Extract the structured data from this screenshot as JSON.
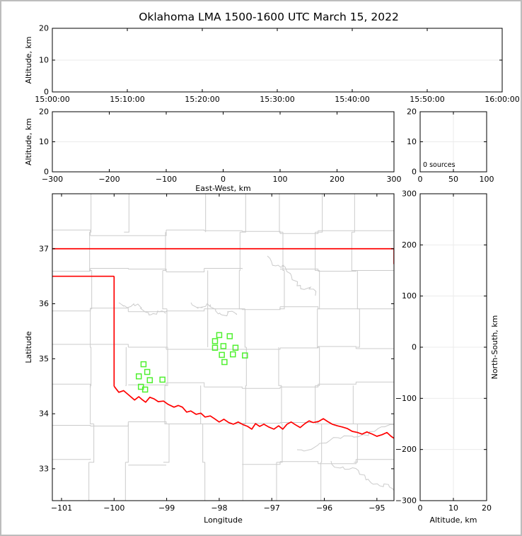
{
  "title": "Oklahoma LMA 1500-1600 UTC March 15, 2022",
  "colors": {
    "background": "#ffffff",
    "frame": "#bdbdbd",
    "axis": "#000000",
    "grid": "#ebebeb",
    "county_lines": "#cbcbcb",
    "state_border": "#ff0000",
    "station_marker": "#50f030"
  },
  "chart_data": [
    {
      "id": "altitude_vs_time",
      "type": "scatter",
      "title": "",
      "xlabel": "",
      "ylabel": "Altitude, km",
      "xlim": [
        0,
        3600
      ],
      "ylim": [
        0,
        20
      ],
      "xtick_values": [
        0,
        600,
        1200,
        1800,
        2400,
        3000,
        3600
      ],
      "xtick_labels": [
        "15:00:00",
        "15:10:00",
        "15:20:00",
        "15:30:00",
        "15:40:00",
        "15:50:00",
        "16:00:00"
      ],
      "ytick_values": [
        0,
        10,
        20
      ],
      "ytick_labels": [
        "0",
        "10",
        "20"
      ],
      "grid_x": [],
      "grid_y": [
        10
      ],
      "points": []
    },
    {
      "id": "altitude_vs_east_west",
      "type": "scatter",
      "title": "",
      "xlabel": "East-West, km",
      "ylabel": "Altitude, km",
      "xlim": [
        -300,
        300
      ],
      "ylim": [
        0,
        20
      ],
      "xtick_values": [
        -300,
        -200,
        -100,
        0,
        100,
        200,
        300
      ],
      "xtick_labels": [
        "−300",
        "−200",
        "−100",
        "0",
        "100",
        "200",
        "300"
      ],
      "ytick_values": [
        0,
        10,
        20
      ],
      "ytick_labels": [
        "0",
        "10",
        "20"
      ],
      "grid_x": [],
      "grid_y": [
        10
      ],
      "points": []
    },
    {
      "id": "altitude_source_histogram",
      "type": "line",
      "title": "",
      "xlabel": "",
      "ylabel": "",
      "xlim": [
        0,
        100
      ],
      "ylim": [
        0,
        20
      ],
      "xtick_values": [
        0,
        50,
        100
      ],
      "xtick_labels": [
        "0",
        "50",
        "100"
      ],
      "ytick_values": [
        0,
        10,
        20
      ],
      "ytick_labels": [
        "0",
        "10",
        "20"
      ],
      "grid_x": [
        50
      ],
      "grid_y": [
        10
      ],
      "annotation": "0 sources",
      "points": []
    },
    {
      "id": "plan_view_map",
      "type": "scatter",
      "title": "",
      "xlabel": "Longitude",
      "ylabel": "Latitude",
      "xlim": [
        -101.175,
        -94.675
      ],
      "ylim": [
        32.42,
        38.0
      ],
      "xtick_values": [
        -101,
        -100,
        -99,
        -98,
        -97,
        -96,
        -95
      ],
      "xtick_labels": [
        "−101",
        "−100",
        "−99",
        "−98",
        "−97",
        "−96",
        "−95"
      ],
      "ytick_values": [
        33,
        34,
        35,
        36,
        37
      ],
      "ytick_labels": [
        "33",
        "34",
        "35",
        "36",
        "37"
      ],
      "grid_x": [],
      "grid_y": [],
      "lma_stations_lon_lat": [
        [
          -98.0,
          35.43
        ],
        [
          -97.8,
          35.41
        ],
        [
          -98.08,
          35.32
        ],
        [
          -97.92,
          35.23
        ],
        [
          -98.08,
          35.2
        ],
        [
          -97.69,
          35.2
        ],
        [
          -97.95,
          35.07
        ],
        [
          -97.74,
          35.08
        ],
        [
          -97.51,
          35.06
        ],
        [
          -97.9,
          34.94
        ],
        [
          -99.44,
          34.9
        ],
        [
          -99.37,
          34.76
        ],
        [
          -99.53,
          34.68
        ],
        [
          -99.32,
          34.61
        ],
        [
          -99.08,
          34.62
        ],
        [
          -99.49,
          34.49
        ],
        [
          -99.41,
          34.44
        ]
      ],
      "state_border": {
        "north_border_lat": 37,
        "panhandle_south_lat": 36.5,
        "panhandle_east_lon": -100,
        "meridian_100w_lat_range": [
          36.5,
          34.5
        ],
        "east_edge_clip_lat_range": [
          37,
          36.72
        ],
        "red_river_lon_lat": [
          [
            -100.0,
            34.5
          ],
          [
            -99.91,
            34.39
          ],
          [
            -99.82,
            34.42
          ],
          [
            -99.71,
            34.33
          ],
          [
            -99.61,
            34.25
          ],
          [
            -99.53,
            34.31
          ],
          [
            -99.47,
            34.26
          ],
          [
            -99.4,
            34.21
          ],
          [
            -99.32,
            34.3
          ],
          [
            -99.24,
            34.27
          ],
          [
            -99.16,
            34.22
          ],
          [
            -99.06,
            34.23
          ],
          [
            -98.97,
            34.17
          ],
          [
            -98.86,
            34.12
          ],
          [
            -98.78,
            34.15
          ],
          [
            -98.7,
            34.12
          ],
          [
            -98.62,
            34.03
          ],
          [
            -98.54,
            34.05
          ],
          [
            -98.44,
            33.99
          ],
          [
            -98.35,
            34.01
          ],
          [
            -98.27,
            33.94
          ],
          [
            -98.17,
            33.96
          ],
          [
            -98.09,
            33.91
          ],
          [
            -98.0,
            33.85
          ],
          [
            -97.91,
            33.9
          ],
          [
            -97.82,
            33.84
          ],
          [
            -97.73,
            33.81
          ],
          [
            -97.64,
            33.85
          ],
          [
            -97.54,
            33.8
          ],
          [
            -97.46,
            33.77
          ],
          [
            -97.38,
            33.72
          ],
          [
            -97.31,
            33.82
          ],
          [
            -97.23,
            33.77
          ],
          [
            -97.15,
            33.81
          ],
          [
            -97.06,
            33.76
          ],
          [
            -96.96,
            33.72
          ],
          [
            -96.87,
            33.78
          ],
          [
            -96.79,
            33.72
          ],
          [
            -96.71,
            33.81
          ],
          [
            -96.63,
            33.85
          ],
          [
            -96.55,
            33.8
          ],
          [
            -96.46,
            33.75
          ],
          [
            -96.37,
            33.82
          ],
          [
            -96.29,
            33.87
          ],
          [
            -96.21,
            33.84
          ],
          [
            -96.11,
            33.86
          ],
          [
            -96.02,
            33.91
          ],
          [
            -95.94,
            33.86
          ],
          [
            -95.85,
            33.81
          ],
          [
            -95.75,
            33.78
          ],
          [
            -95.66,
            33.76
          ],
          [
            -95.56,
            33.73
          ],
          [
            -95.47,
            33.68
          ],
          [
            -95.37,
            33.66
          ],
          [
            -95.28,
            33.63
          ],
          [
            -95.19,
            33.67
          ],
          [
            -95.09,
            33.63
          ],
          [
            -95.0,
            33.59
          ],
          [
            -94.9,
            33.62
          ],
          [
            -94.81,
            33.66
          ],
          [
            -94.73,
            33.59
          ],
          [
            -94.67,
            33.55
          ]
        ]
      }
    },
    {
      "id": "north_south_vs_altitude",
      "type": "scatter",
      "title": "",
      "xlabel": "Altitude, km",
      "ylabel_right": "North-South, km",
      "xlim": [
        0,
        20
      ],
      "ylim": [
        -300,
        300
      ],
      "xtick_values": [
        0,
        10,
        20
      ],
      "xtick_labels": [
        "0",
        "10",
        "20"
      ],
      "ytick_values": [
        -300,
        -200,
        -100,
        0,
        100,
        200,
        300
      ],
      "ytick_labels": [
        "−300",
        "−200",
        "−100",
        "0",
        "100",
        "200",
        "300"
      ],
      "grid_x": [
        10
      ],
      "grid_y": [
        -200,
        -100,
        0,
        100,
        200
      ],
      "points": []
    }
  ]
}
